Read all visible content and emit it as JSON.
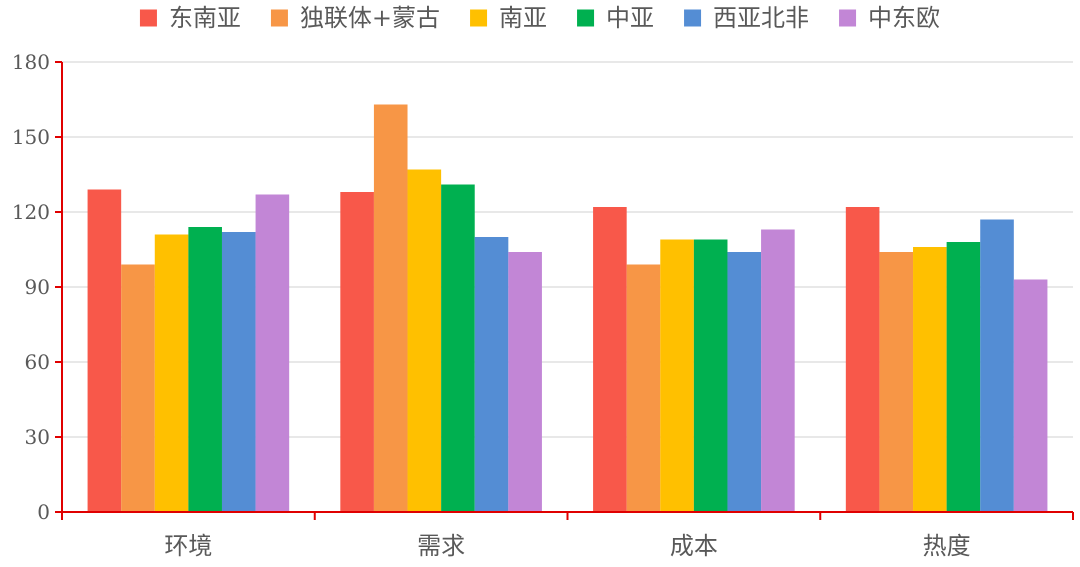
{
  "chart_data": {
    "type": "bar",
    "title": "",
    "xlabel": "",
    "ylabel": "",
    "categories": [
      "环境",
      "需求",
      "成本",
      "热度"
    ],
    "series": [
      {
        "name": "东南亚",
        "color": "#F8584A",
        "values": [
          129,
          128,
          122,
          122
        ]
      },
      {
        "name": "独联体+蒙古",
        "color": "#F79646",
        "values": [
          99,
          163,
          99,
          104
        ]
      },
      {
        "name": "南亚",
        "color": "#FFC000",
        "values": [
          111,
          137,
          109,
          106
        ]
      },
      {
        "name": "中亚",
        "color": "#00B050",
        "values": [
          114,
          131,
          109,
          108
        ]
      },
      {
        "name": "西亚北非",
        "color": "#548DD4",
        "values": [
          112,
          110,
          104,
          117
        ]
      },
      {
        "name": "中东欧",
        "color": "#C286D6",
        "values": [
          127,
          104,
          113,
          93
        ]
      }
    ],
    "ylim": [
      0,
      180
    ],
    "yticks": [
      0,
      30,
      60,
      90,
      120,
      150,
      180
    ],
    "grid": true,
    "legend_position": "top",
    "axis_color": "#E00000",
    "grid_color": "#D9D9D9"
  }
}
